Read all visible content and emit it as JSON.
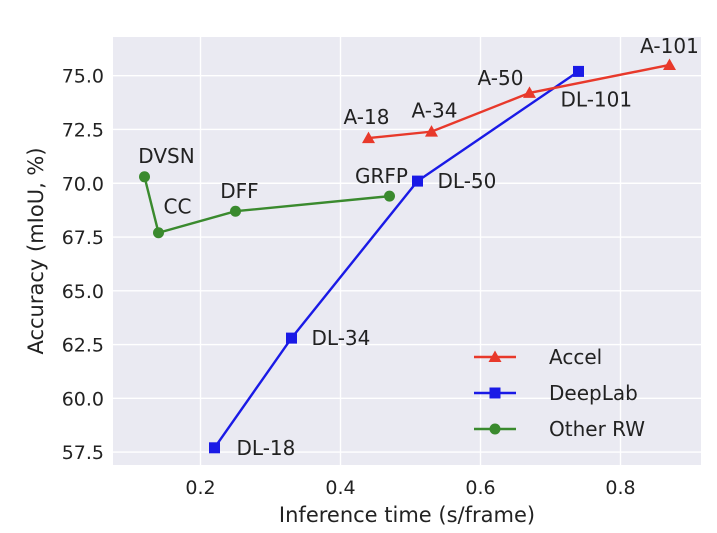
{
  "chart_data": {
    "type": "line",
    "xlabel": "Inference time (s/frame)",
    "ylabel": "Accuracy (mIoU, %)",
    "xlim": [
      0.075,
      0.915
    ],
    "ylim": [
      56.9,
      76.8
    ],
    "xticks": [
      "0.2",
      "0.4",
      "0.6",
      "0.8"
    ],
    "yticks": [
      "57.5",
      "60.0",
      "62.5",
      "65.0",
      "67.5",
      "70.0",
      "72.5",
      "75.0"
    ],
    "grid": true,
    "legend_position": "lower-right",
    "series": [
      {
        "name": "Accel",
        "color": "#e8392b",
        "marker": "triangle",
        "points": [
          {
            "x": 0.44,
            "y": 72.1,
            "label": "A-18"
          },
          {
            "x": 0.53,
            "y": 72.4,
            "label": "A-34"
          },
          {
            "x": 0.67,
            "y": 74.2,
            "label": "A-50"
          },
          {
            "x": 0.87,
            "y": 75.5,
            "label": "A-101"
          }
        ]
      },
      {
        "name": "DeepLab",
        "color": "#1a1ae6",
        "marker": "square",
        "points": [
          {
            "x": 0.22,
            "y": 57.7,
            "label": "DL-18"
          },
          {
            "x": 0.33,
            "y": 62.8,
            "label": "DL-34"
          },
          {
            "x": 0.51,
            "y": 70.1,
            "label": "DL-50"
          },
          {
            "x": 0.74,
            "y": 75.2,
            "label": "DL-101"
          }
        ]
      },
      {
        "name": "Other RW",
        "color": "#3a8a2e",
        "marker": "circle",
        "points": [
          {
            "x": 0.12,
            "y": 70.3,
            "label": "DVSN"
          },
          {
            "x": 0.14,
            "y": 67.7,
            "label": "CC"
          },
          {
            "x": 0.25,
            "y": 68.7,
            "label": "DFF"
          },
          {
            "x": 0.47,
            "y": 69.4,
            "label": "GRFP"
          }
        ]
      }
    ]
  }
}
